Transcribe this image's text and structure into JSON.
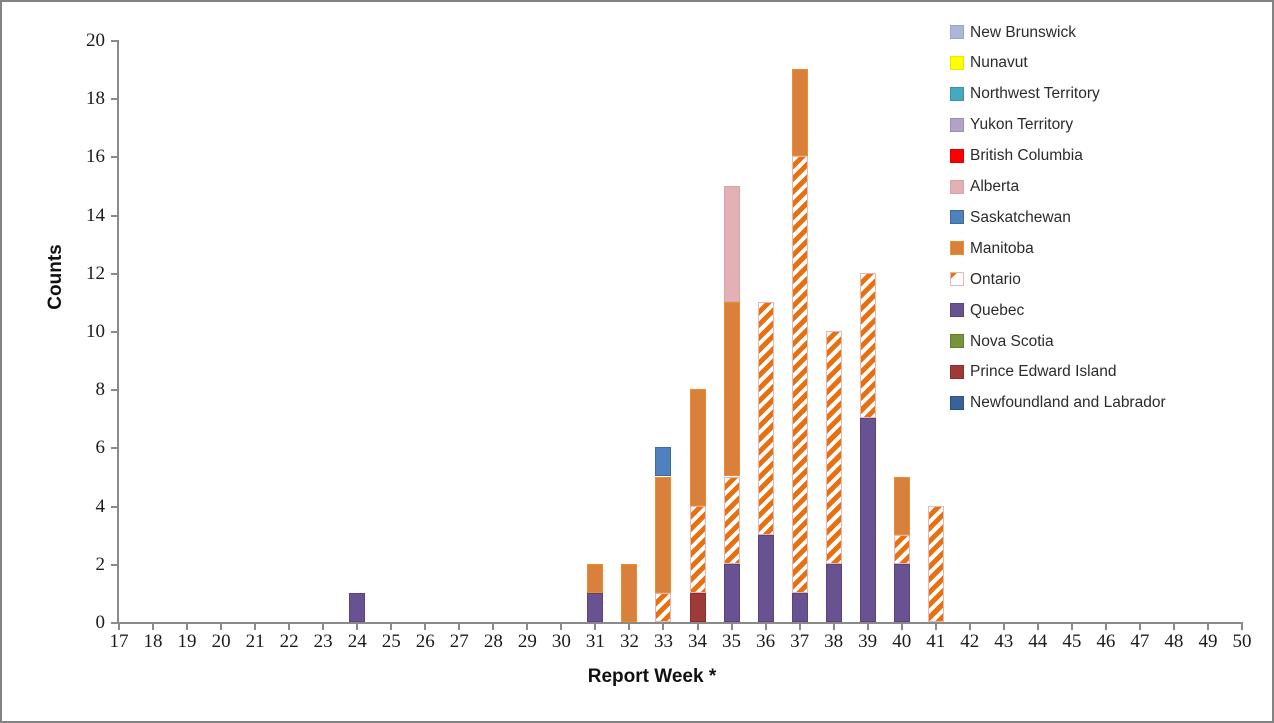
{
  "chart_data": {
    "type": "bar",
    "stacked": true,
    "title": "",
    "xlabel": "Report Week *",
    "ylabel": "Counts",
    "grid": false,
    "legend_position": "right",
    "ylim": [
      0,
      20
    ],
    "y_ticks": [
      0,
      2,
      4,
      6,
      8,
      10,
      12,
      14,
      16,
      18,
      20
    ],
    "x_ticks": [
      17,
      18,
      19,
      20,
      21,
      22,
      23,
      24,
      25,
      26,
      27,
      28,
      29,
      30,
      31,
      32,
      33,
      34,
      35,
      36,
      37,
      38,
      39,
      40,
      41,
      42,
      43,
      44,
      45,
      46,
      47,
      48,
      49,
      50
    ],
    "series": [
      {
        "id": "nb",
        "name": "New Brunswick",
        "fill": "#a9b8d8",
        "border": "#97a7cc",
        "pattern": "solid"
      },
      {
        "id": "nu",
        "name": "Nunavut",
        "fill": "#ffff00",
        "border": "#e8e800",
        "pattern": "solid"
      },
      {
        "id": "nt",
        "name": "Northwest Territory",
        "fill": "#45a9c2",
        "border": "#3b93aa",
        "pattern": "solid"
      },
      {
        "id": "yt",
        "name": "Yukon Territory",
        "fill": "#b2a2c7",
        "border": "#9f8db8",
        "pattern": "solid"
      },
      {
        "id": "bc",
        "name": "British Columbia",
        "fill": "#ff0000",
        "border": "#e00000",
        "pattern": "solid"
      },
      {
        "id": "ab",
        "name": "Alberta",
        "fill": "#e2b0b5",
        "border": "#d9a3a9",
        "pattern": "solid"
      },
      {
        "id": "sk",
        "name": "Saskatchewan",
        "fill": "#4e81bd",
        "border": "#41699a",
        "pattern": "solid"
      },
      {
        "id": "mb",
        "name": "Manitoba",
        "fill": "#d9803d",
        "border": "#f08b2a",
        "pattern": "solid"
      },
      {
        "id": "on",
        "name": "Ontario",
        "fill": "#ffffff",
        "border": "#e5b8b7",
        "pattern": "hatch"
      },
      {
        "id": "qc",
        "name": "Quebec",
        "fill": "#685291",
        "border": "#5a4480",
        "pattern": "solid"
      },
      {
        "id": "ns",
        "name": "Nova Scotia",
        "fill": "#77933c",
        "border": "#647e30",
        "pattern": "solid"
      },
      {
        "id": "pe",
        "name": "Prince Edward Island",
        "fill": "#9e3b38",
        "border": "#88322f",
        "pattern": "solid"
      },
      {
        "id": "nl",
        "name": "Newfoundland and Labrador",
        "fill": "#37629b",
        "border": "#2d5384",
        "pattern": "solid"
      }
    ],
    "bars": [
      {
        "week": 24,
        "segments": [
          {
            "series": "qc",
            "value": 1
          }
        ]
      },
      {
        "week": 31,
        "segments": [
          {
            "series": "qc",
            "value": 1
          },
          {
            "series": "mb",
            "value": 1
          }
        ]
      },
      {
        "week": 32,
        "segments": [
          {
            "series": "mb",
            "value": 2
          }
        ]
      },
      {
        "week": 33,
        "segments": [
          {
            "series": "on",
            "value": 1
          },
          {
            "series": "mb",
            "value": 4
          },
          {
            "series": "sk",
            "value": 1
          }
        ]
      },
      {
        "week": 34,
        "segments": [
          {
            "series": "pe",
            "value": 1
          },
          {
            "series": "on",
            "value": 3
          },
          {
            "series": "mb",
            "value": 4
          }
        ]
      },
      {
        "week": 35,
        "segments": [
          {
            "series": "qc",
            "value": 2
          },
          {
            "series": "on",
            "value": 3
          },
          {
            "series": "mb",
            "value": 6
          },
          {
            "series": "ab",
            "value": 4
          }
        ]
      },
      {
        "week": 36,
        "segments": [
          {
            "series": "qc",
            "value": 3
          },
          {
            "series": "on",
            "value": 8
          }
        ]
      },
      {
        "week": 37,
        "segments": [
          {
            "series": "qc",
            "value": 1
          },
          {
            "series": "on",
            "value": 15
          },
          {
            "series": "mb",
            "value": 3
          }
        ]
      },
      {
        "week": 38,
        "segments": [
          {
            "series": "qc",
            "value": 2
          },
          {
            "series": "on",
            "value": 8
          }
        ]
      },
      {
        "week": 39,
        "segments": [
          {
            "series": "qc",
            "value": 7
          },
          {
            "series": "on",
            "value": 5
          }
        ]
      },
      {
        "week": 40,
        "segments": [
          {
            "series": "qc",
            "value": 2
          },
          {
            "series": "on",
            "value": 1
          },
          {
            "series": "mb",
            "value": 2
          }
        ]
      },
      {
        "week": 41,
        "segments": [
          {
            "series": "on",
            "value": 4
          }
        ]
      }
    ]
  }
}
